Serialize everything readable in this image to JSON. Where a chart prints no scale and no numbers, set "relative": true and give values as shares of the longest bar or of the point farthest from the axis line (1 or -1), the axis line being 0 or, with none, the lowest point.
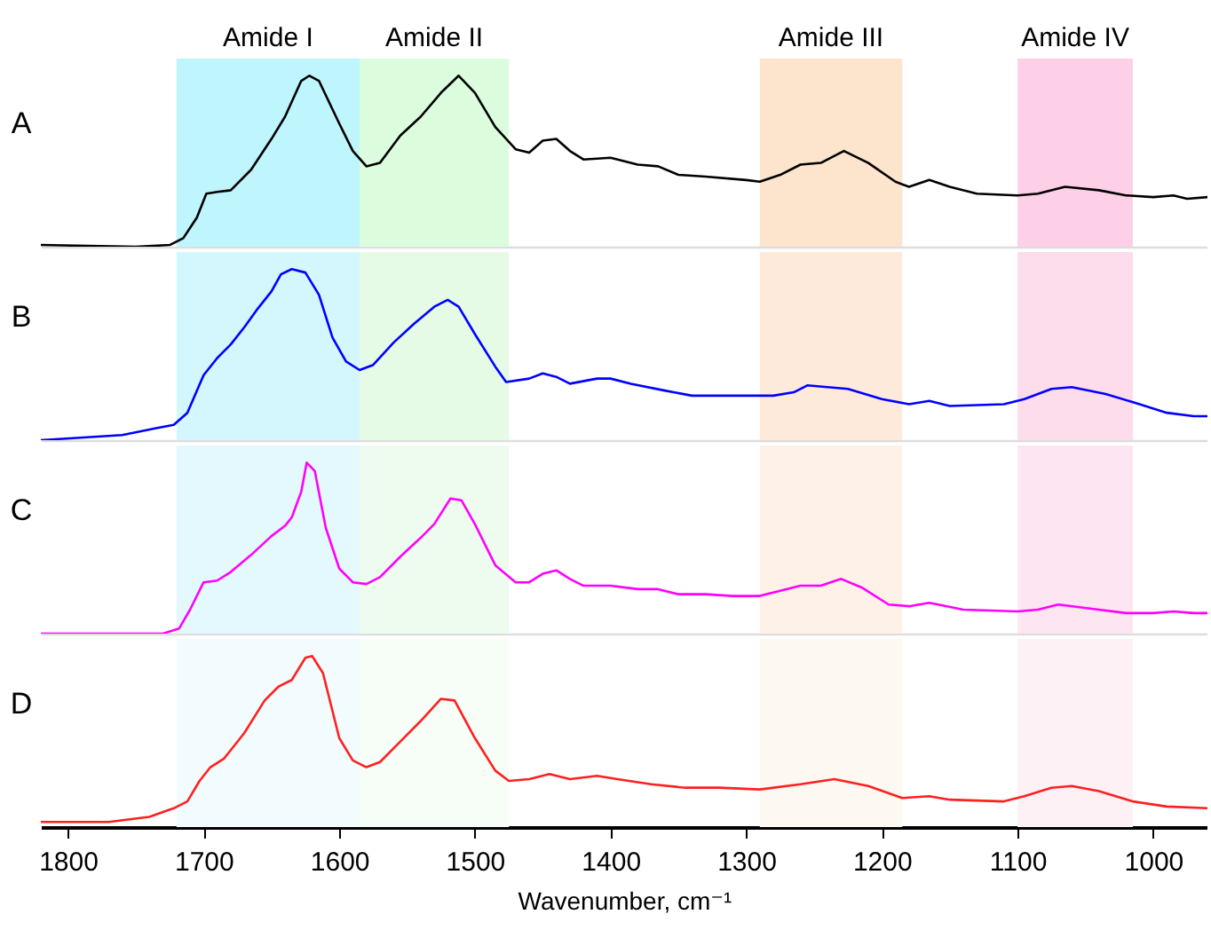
{
  "chart_data": [
    {
      "type": "line",
      "ylabel": "A",
      "relative": true,
      "xlim": [
        1820,
        960
      ],
      "xticks": [
        1800,
        1700,
        1600,
        1500,
        1400,
        1300,
        1200,
        1100,
        1000
      ],
      "tick_labels": false,
      "bands": [
        {
          "axis": "x",
          "from": 1720,
          "to": 1585,
          "label": "Amide I",
          "color": "#bff5fc"
        },
        {
          "axis": "x",
          "from": 1585,
          "to": 1475,
          "label": "Amide II",
          "color": "#dcfddd"
        },
        {
          "axis": "x",
          "from": 1290,
          "to": 1185,
          "label": "Amide III",
          "color": "#fde4cc"
        },
        {
          "axis": "x",
          "from": 1100,
          "to": 1015,
          "label": "Amide IV",
          "color": "#fdd0e8"
        }
      ],
      "x": [
        1820,
        1750,
        1725,
        1715,
        1705,
        1698,
        1690,
        1680,
        1665,
        1650,
        1640,
        1628,
        1622,
        1615,
        1600,
        1590,
        1580,
        1570,
        1555,
        1540,
        1525,
        1512,
        1500,
        1485,
        1470,
        1460,
        1450,
        1440,
        1430,
        1420,
        1400,
        1380,
        1365,
        1350,
        1330,
        1300,
        1290,
        1275,
        1260,
        1245,
        1228,
        1210,
        1190,
        1180,
        1165,
        1150,
        1130,
        1100,
        1085,
        1065,
        1040,
        1020,
        1000,
        985,
        975,
        960
      ],
      "series": [
        {
          "color": "#000000",
          "values": [
            0.01,
            0.0,
            0.01,
            0.05,
            0.17,
            0.31,
            0.32,
            0.33,
            0.45,
            0.63,
            0.76,
            0.97,
            1.0,
            0.97,
            0.72,
            0.56,
            0.47,
            0.49,
            0.65,
            0.76,
            0.9,
            1.0,
            0.9,
            0.7,
            0.57,
            0.55,
            0.62,
            0.63,
            0.56,
            0.51,
            0.52,
            0.48,
            0.47,
            0.42,
            0.41,
            0.39,
            0.38,
            0.42,
            0.48,
            0.49,
            0.56,
            0.49,
            0.38,
            0.35,
            0.39,
            0.35,
            0.31,
            0.3,
            0.31,
            0.35,
            0.33,
            0.3,
            0.29,
            0.3,
            0.28,
            0.29
          ]
        }
      ]
    },
    {
      "type": "line",
      "ylabel": "B",
      "relative": true,
      "xlim": [
        1820,
        960
      ],
      "xticks": [
        1800,
        1700,
        1600,
        1500,
        1400,
        1300,
        1200,
        1100,
        1000
      ],
      "tick_labels": false,
      "bands": [
        {
          "axis": "x",
          "from": 1720,
          "to": 1585,
          "color": "#d3f7fc"
        },
        {
          "axis": "x",
          "from": 1585,
          "to": 1475,
          "color": "#e5fbe5"
        },
        {
          "axis": "x",
          "from": 1290,
          "to": 1185,
          "color": "#fdeadb"
        },
        {
          "axis": "x",
          "from": 1100,
          "to": 1015,
          "color": "#fddcec"
        }
      ],
      "x": [
        1820,
        1760,
        1735,
        1722,
        1712,
        1700,
        1690,
        1680,
        1670,
        1660,
        1650,
        1643,
        1635,
        1625,
        1615,
        1605,
        1595,
        1585,
        1575,
        1560,
        1545,
        1530,
        1520,
        1512,
        1500,
        1485,
        1477,
        1460,
        1450,
        1440,
        1430,
        1410,
        1400,
        1385,
        1360,
        1340,
        1300,
        1280,
        1265,
        1255,
        1240,
        1225,
        1200,
        1180,
        1165,
        1150,
        1110,
        1095,
        1075,
        1060,
        1035,
        1010,
        990,
        970,
        960
      ],
      "series": [
        {
          "color": "#0000ff",
          "values": [
            0.0,
            0.03,
            0.07,
            0.09,
            0.16,
            0.38,
            0.48,
            0.56,
            0.66,
            0.77,
            0.87,
            0.97,
            1.0,
            0.98,
            0.85,
            0.6,
            0.46,
            0.41,
            0.44,
            0.57,
            0.68,
            0.78,
            0.82,
            0.78,
            0.62,
            0.43,
            0.34,
            0.36,
            0.39,
            0.37,
            0.33,
            0.36,
            0.36,
            0.33,
            0.29,
            0.26,
            0.26,
            0.26,
            0.28,
            0.32,
            0.31,
            0.3,
            0.24,
            0.21,
            0.23,
            0.2,
            0.21,
            0.24,
            0.3,
            0.31,
            0.27,
            0.21,
            0.16,
            0.14,
            0.14
          ]
        }
      ]
    },
    {
      "type": "line",
      "ylabel": "C",
      "relative": true,
      "xlim": [
        1820,
        960
      ],
      "xticks": [
        1800,
        1700,
        1600,
        1500,
        1400,
        1300,
        1200,
        1100,
        1000
      ],
      "tick_labels": false,
      "bands": [
        {
          "axis": "x",
          "from": 1720,
          "to": 1585,
          "color": "#e3f9fd"
        },
        {
          "axis": "x",
          "from": 1585,
          "to": 1475,
          "color": "#eefcef"
        },
        {
          "axis": "x",
          "from": 1290,
          "to": 1185,
          "color": "#fef1e7"
        },
        {
          "axis": "x",
          "from": 1100,
          "to": 1015,
          "color": "#fde6f1"
        }
      ],
      "x": [
        1820,
        1730,
        1718,
        1710,
        1700,
        1690,
        1680,
        1665,
        1650,
        1640,
        1635,
        1628,
        1624,
        1618,
        1610,
        1600,
        1590,
        1580,
        1570,
        1555,
        1540,
        1530,
        1518,
        1510,
        1500,
        1485,
        1470,
        1460,
        1450,
        1440,
        1430,
        1420,
        1400,
        1380,
        1365,
        1350,
        1330,
        1310,
        1290,
        1275,
        1260,
        1245,
        1230,
        1215,
        1195,
        1180,
        1165,
        1140,
        1100,
        1085,
        1070,
        1040,
        1020,
        1000,
        985,
        970,
        960
      ],
      "series": [
        {
          "color": "#ff00ff",
          "values": [
            0.0,
            0.0,
            0.03,
            0.14,
            0.3,
            0.31,
            0.36,
            0.46,
            0.57,
            0.63,
            0.68,
            0.83,
            1.0,
            0.95,
            0.62,
            0.38,
            0.3,
            0.29,
            0.33,
            0.45,
            0.56,
            0.64,
            0.79,
            0.78,
            0.64,
            0.4,
            0.3,
            0.3,
            0.35,
            0.37,
            0.32,
            0.28,
            0.28,
            0.26,
            0.26,
            0.23,
            0.23,
            0.22,
            0.22,
            0.25,
            0.28,
            0.28,
            0.32,
            0.27,
            0.17,
            0.16,
            0.18,
            0.14,
            0.13,
            0.14,
            0.17,
            0.14,
            0.12,
            0.12,
            0.13,
            0.12,
            0.12
          ]
        }
      ]
    },
    {
      "type": "line",
      "ylabel": "D",
      "xlabel": "Wavenumber, cm⁻¹",
      "relative": true,
      "xlim": [
        1820,
        960
      ],
      "xticks": [
        1800,
        1700,
        1600,
        1500,
        1400,
        1300,
        1200,
        1100,
        1000
      ],
      "tick_labels": "x",
      "bands": [
        {
          "axis": "x",
          "from": 1720,
          "to": 1585,
          "color": "#f2fcfe"
        },
        {
          "axis": "x",
          "from": 1585,
          "to": 1475,
          "color": "#f7fdf7"
        },
        {
          "axis": "x",
          "from": 1290,
          "to": 1185,
          "color": "#fef8f3"
        },
        {
          "axis": "x",
          "from": 1100,
          "to": 1015,
          "color": "#fdf1f6"
        }
      ],
      "x": [
        1820,
        1770,
        1740,
        1722,
        1712,
        1703,
        1695,
        1685,
        1670,
        1655,
        1645,
        1635,
        1625,
        1620,
        1612,
        1600,
        1590,
        1580,
        1570,
        1555,
        1540,
        1525,
        1515,
        1500,
        1485,
        1475,
        1460,
        1445,
        1430,
        1410,
        1395,
        1370,
        1345,
        1320,
        1290,
        1260,
        1235,
        1210,
        1185,
        1165,
        1150,
        1110,
        1095,
        1075,
        1060,
        1040,
        1015,
        990,
        960
      ],
      "series": [
        {
          "color": "#ff2020",
          "values": [
            0.03,
            0.03,
            0.06,
            0.11,
            0.15,
            0.27,
            0.35,
            0.4,
            0.55,
            0.74,
            0.82,
            0.86,
            0.99,
            1.0,
            0.9,
            0.52,
            0.39,
            0.35,
            0.38,
            0.5,
            0.62,
            0.75,
            0.74,
            0.52,
            0.33,
            0.27,
            0.28,
            0.31,
            0.28,
            0.3,
            0.28,
            0.25,
            0.23,
            0.23,
            0.22,
            0.25,
            0.28,
            0.24,
            0.17,
            0.18,
            0.16,
            0.15,
            0.18,
            0.23,
            0.24,
            0.21,
            0.15,
            0.12,
            0.11
          ]
        }
      ]
    }
  ]
}
